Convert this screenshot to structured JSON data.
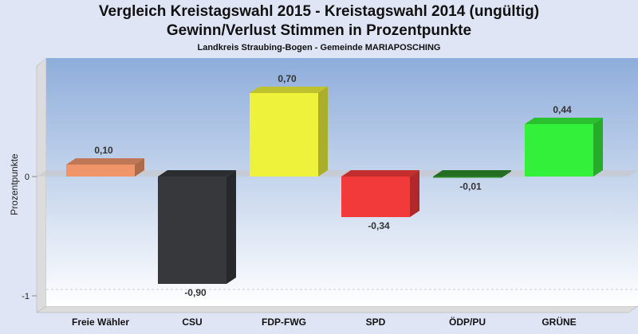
{
  "chart_data": {
    "type": "bar",
    "title": "Vergleich Kreistagswahl 2015 - Kreistagswahl 2014 (ungültig)",
    "subtitle": "Gewinn/Verlust Stimmen in Prozentpunkte",
    "subtitle2": "Landkreis Straubing-Bogen - Gemeinde MARIAPOSCHING",
    "xlabel": "",
    "ylabel": "Prozentpunkte",
    "ylim": [
      -1.05,
      0.95
    ],
    "yticks": [
      0,
      -1
    ],
    "ytick_labels": [
      "0",
      "-1"
    ],
    "categories": [
      "Freie Wähler",
      "CSU",
      "FDP-FWG",
      "SPD",
      "ÖDP/PU",
      "GRÜNE"
    ],
    "values": [
      0.1,
      -0.9,
      0.7,
      -0.34,
      -0.01,
      0.44
    ],
    "value_labels": [
      "0,10",
      "-0,90",
      "0,70",
      "-0,34",
      "-0,01",
      "0,44"
    ],
    "colors": [
      "#f0956a",
      "#36383c",
      "#eef23a",
      "#f23a3a",
      "#2c8a2c",
      "#33f03a"
    ],
    "grid": true,
    "legend": "none"
  }
}
